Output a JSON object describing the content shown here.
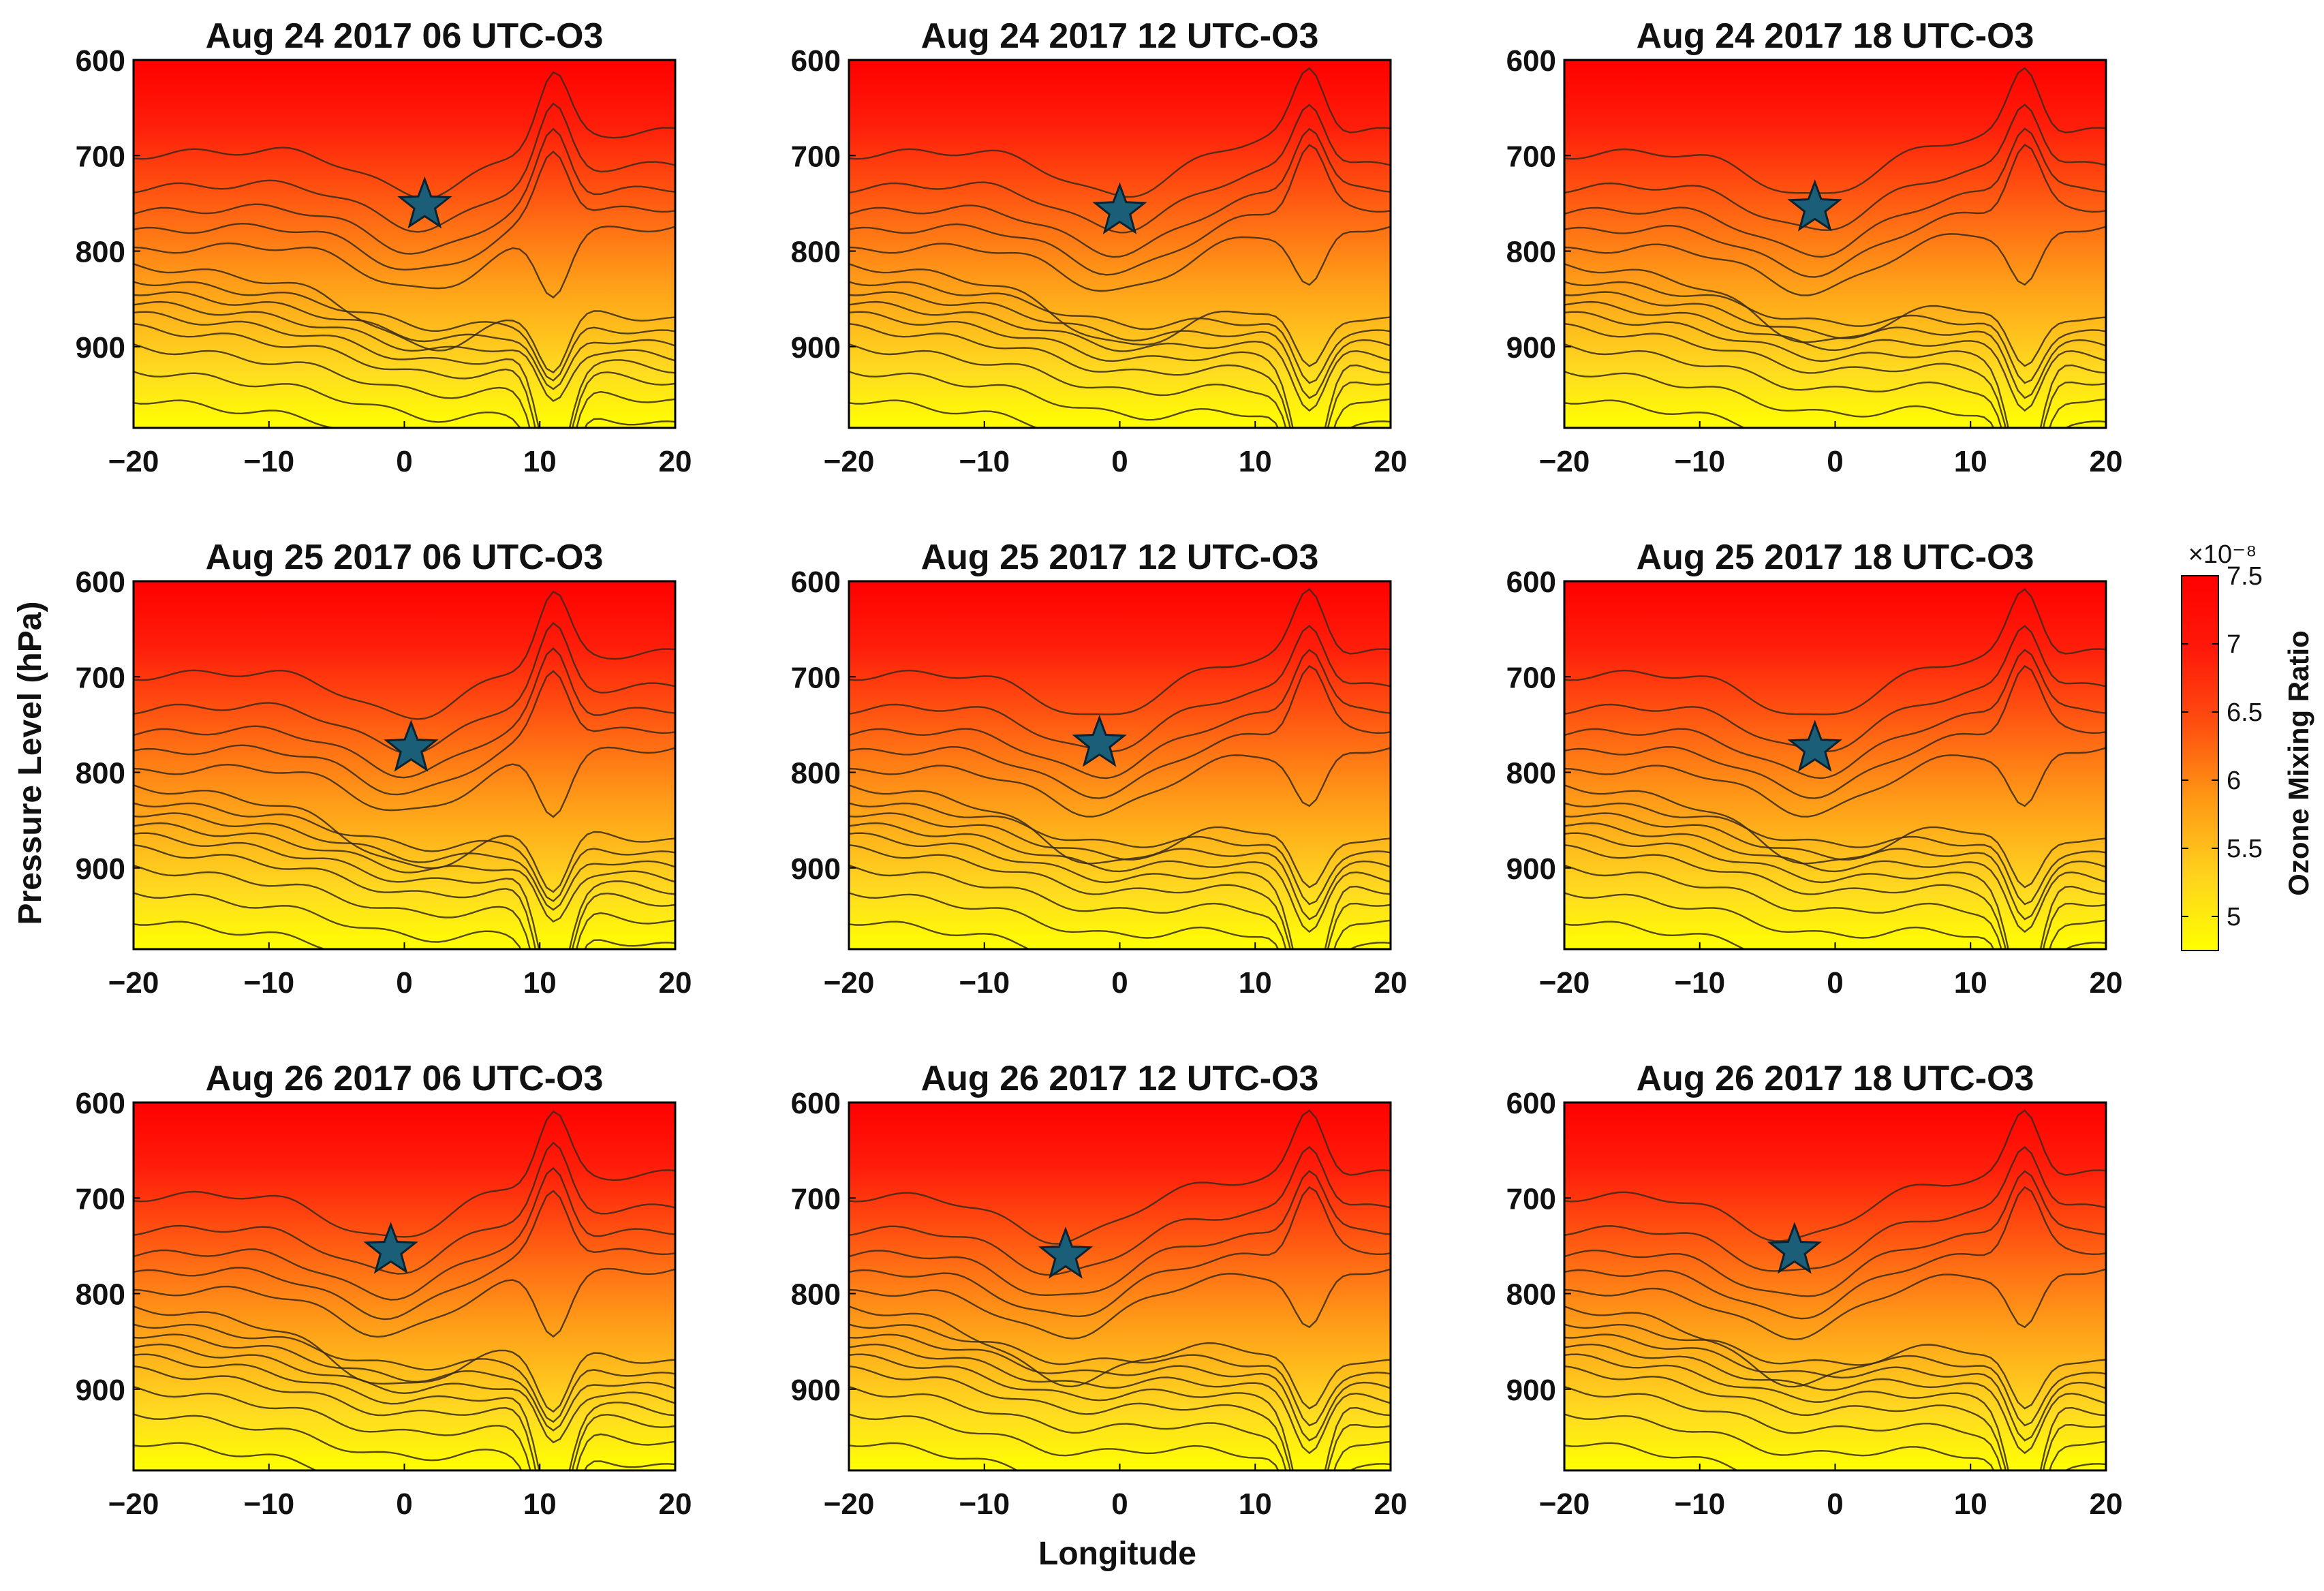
{
  "chart_data": {
    "type": "heatmap",
    "subtype": "filled-contour-grid",
    "layout": "3x3",
    "shared_xlabel": "Longitude",
    "shared_ylabel": "Pressure Level (hPa)",
    "xlim": [
      -20,
      20
    ],
    "xticks": [
      -20,
      -10,
      0,
      10,
      20
    ],
    "xtick_labels": [
      "−20",
      "−10",
      "0",
      "10",
      "20"
    ],
    "ylim": [
      600,
      985
    ],
    "y_reversed": true,
    "yticks": [
      600,
      700,
      800,
      900
    ],
    "ytick_labels": [
      "600",
      "700",
      "800",
      "900"
    ],
    "colorbar": {
      "label": "Ozone Mixing Ratio",
      "exponent_label": "×10⁻⁸",
      "range": [
        4.75,
        7.5
      ],
      "ticks": [
        5,
        5.5,
        6,
        6.5,
        7,
        7.5
      ],
      "tick_labels": [
        "5",
        "5.5",
        "6",
        "6.5",
        "7",
        "7.5"
      ],
      "colors": [
        "#ffff00",
        "#ffd21e",
        "#ff9a14",
        "#ff5010",
        "#ff1a0a",
        "#ff0000"
      ]
    },
    "contour_color": "#3a2a1a",
    "marker": {
      "shape": "star",
      "fill": "#1b5e78",
      "stroke": "#0b2230"
    },
    "panels": [
      {
        "title": "Aug 24 2017 06 UTC-O3",
        "star": {
          "lon": 1.5,
          "p": 752
        }
      },
      {
        "title": "Aug 24 2017 12 UTC-O3",
        "star": {
          "lon": 0,
          "p": 758
        }
      },
      {
        "title": "Aug 24 2017 18 UTC-O3",
        "star": {
          "lon": -1.5,
          "p": 755
        }
      },
      {
        "title": "Aug 25 2017 06 UTC-O3",
        "star": {
          "lon": 0.5,
          "p": 775
        }
      },
      {
        "title": "Aug 25 2017 12 UTC-O3",
        "star": {
          "lon": -1.5,
          "p": 770
        }
      },
      {
        "title": "Aug 25 2017 18 UTC-O3",
        "star": {
          "lon": -1.5,
          "p": 775
        }
      },
      {
        "title": "Aug 26 2017 06 UTC-O3",
        "star": {
          "lon": -1,
          "p": 755
        }
      },
      {
        "title": "Aug 26 2017 12 UTC-O3",
        "star": {
          "lon": -4,
          "p": 760
        }
      },
      {
        "title": "Aug 26 2017 18 UTC-O3",
        "star": {
          "lon": -3,
          "p": 755
        }
      }
    ]
  }
}
